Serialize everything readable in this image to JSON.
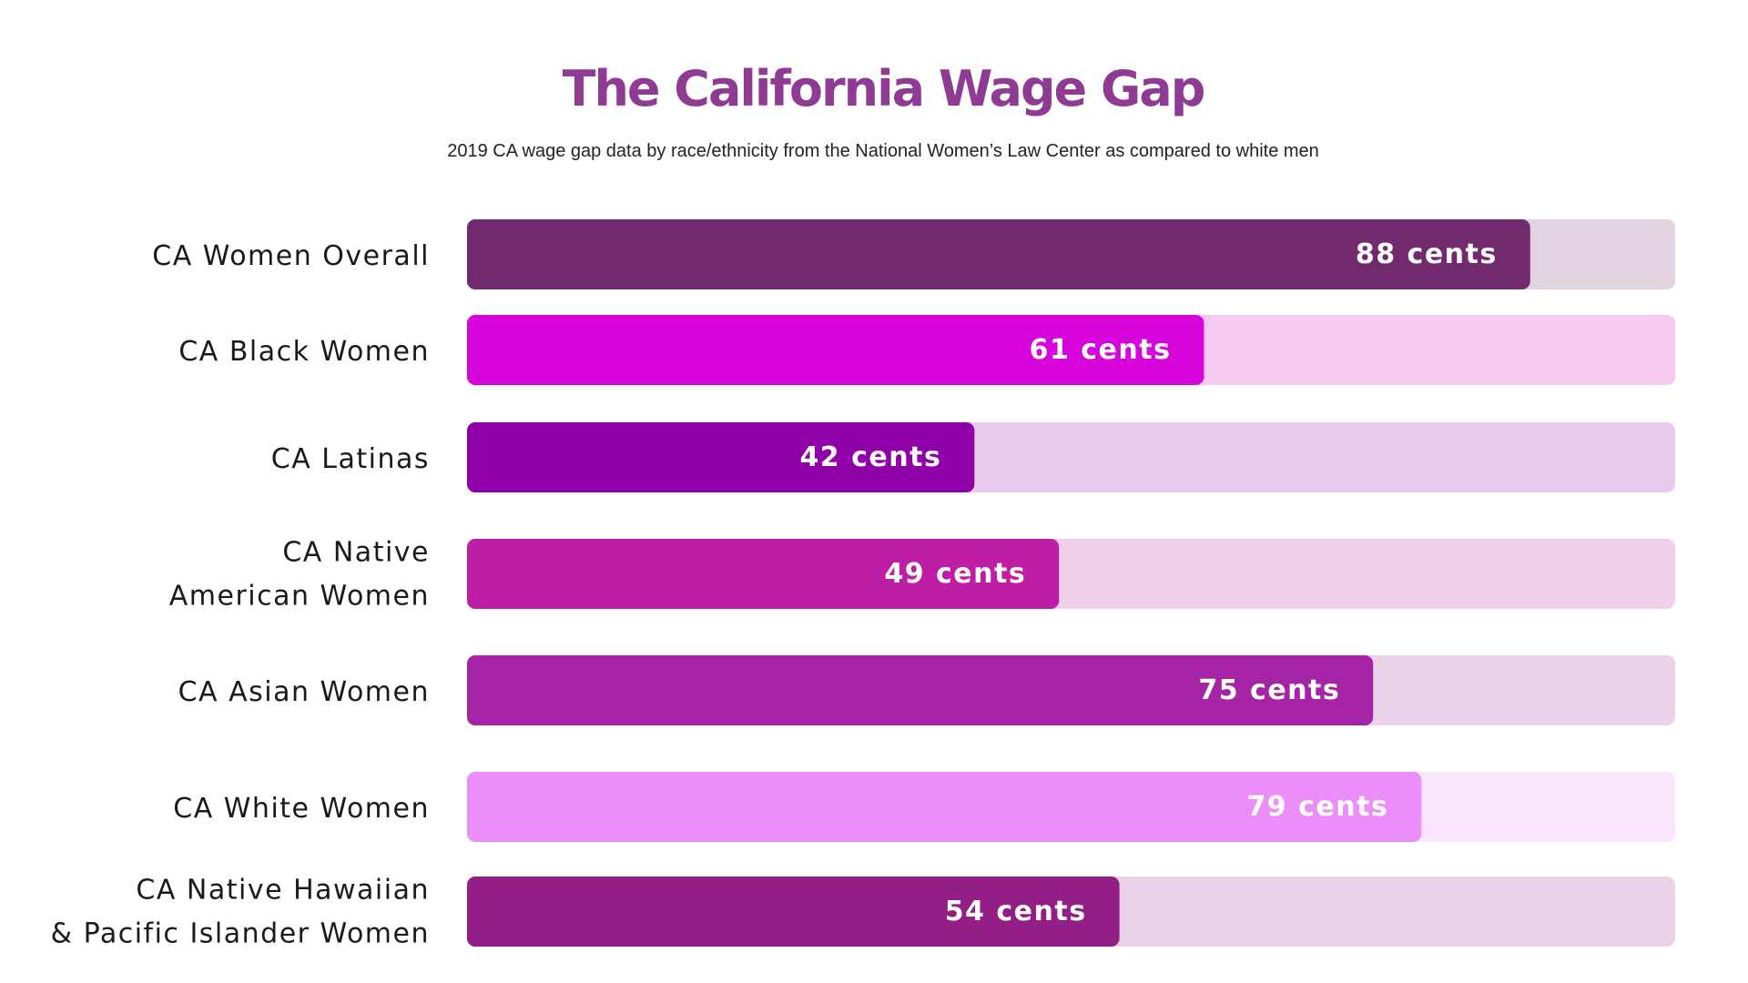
{
  "chart_data": {
    "type": "bar",
    "orientation": "horizontal",
    "title": "The California Wage Gap",
    "subtitle": "2019 CA wage gap data by race/ethnicity from the National Women’s Law Center as compared to white men",
    "xlim": [
      0,
      100
    ],
    "unit_suffix": " cents",
    "categories": [
      "CA Women Overall",
      "CA Black Women",
      "CA Latinas",
      "CA Native American Women",
      "CA Asian Women",
      "CA White Women",
      "CA Native Hawaiian & Pacific Islander Women"
    ],
    "values": [
      88,
      61,
      42,
      49,
      75,
      79,
      54
    ],
    "value_labels": [
      "88 cents",
      "61 cents",
      "42 cents",
      "49 cents",
      "75 cents",
      "79 cents",
      "54 cents"
    ],
    "bar_colors": [
      "#722a6e",
      "#d605dc",
      "#9000a8",
      "#be1ea6",
      "#a424a5",
      "#ec8ef9",
      "#921e86"
    ],
    "track_colors": [
      "#e2d3e1",
      "#f4caf3",
      "#e8cbec",
      "#f1d0eb",
      "#ead2ea",
      "#fae6fc",
      "#e9d2e6"
    ]
  }
}
